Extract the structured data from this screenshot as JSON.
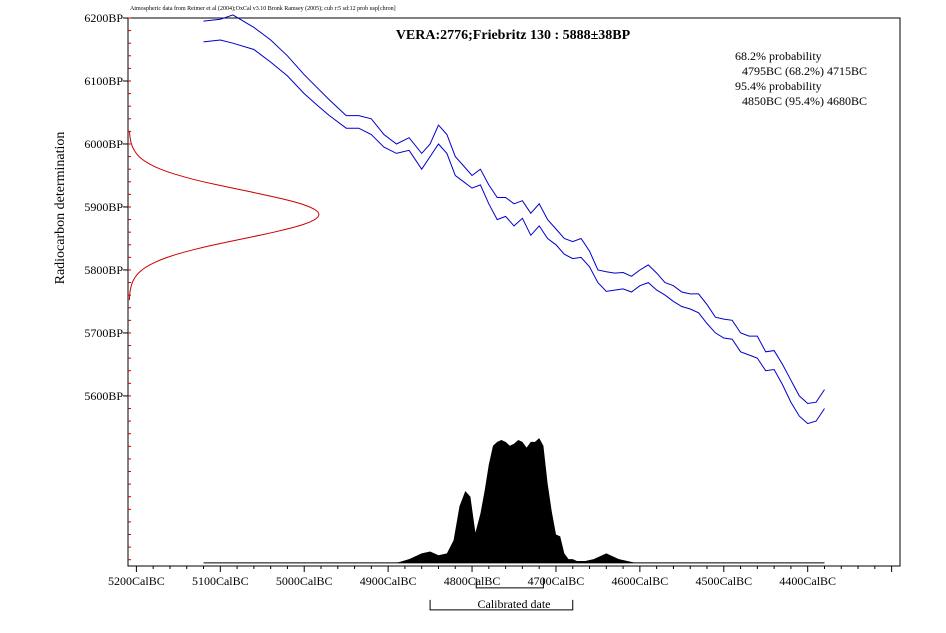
{
  "chart_data": {
    "type": "line",
    "header_note": "Atmospheric data from Reimer et al (2004);OxCal v3.10 Bronk Ramsey (2005); cub r:5 sd:12 prob usp[chron]",
    "title": "VERA:2776;Friebritz 130 : 5888±38BP",
    "xlabel": "Calibrated date",
    "ylabel": "Radiocarbon determination",
    "xlim": [
      5210,
      4290
    ],
    "ylim": [
      5330,
      6200
    ],
    "x_ticks": [
      5200,
      5100,
      5000,
      4900,
      4800,
      4700,
      4600,
      4500,
      4400
    ],
    "x_tick_labels": [
      "5200CalBC",
      "5100CalBC",
      "5000CalBC",
      "4900CalBC",
      "4800CalBC",
      "4700CalBC",
      "4600CalBC",
      "4500CalBC",
      "4400CalBC"
    ],
    "y_ticks": [
      5600,
      5700,
      5800,
      5900,
      6000,
      6100,
      6200
    ],
    "y_tick_labels": [
      "5600BP",
      "5700BP",
      "5800BP",
      "5900BP",
      "6000BP",
      "6100BP",
      "6200BP"
    ],
    "probability_text": [
      "68.2% probability",
      "4795BC (68.2%) 4715BC",
      "95.4% probability",
      "4850BC (95.4%) 4680BC"
    ],
    "ranges": [
      {
        "level": "68.2%",
        "from": 4795,
        "to": 4715
      },
      {
        "level": "95.4%",
        "from": 4850,
        "to": 4680
      }
    ],
    "radiocarbon": {
      "mean": 5888,
      "sd": 38
    },
    "calibration_curve_color": "#0000cc",
    "radiocarbon_curve_color": "#cc0000",
    "probability_fill_color": "#000000",
    "calibration_curve": {
      "x": [
        5120,
        5100,
        5085,
        5060,
        5040,
        5020,
        5000,
        4985,
        4970,
        4950,
        4935,
        4920,
        4905,
        4890,
        4875,
        4860,
        4850,
        4840,
        4830,
        4820,
        4810,
        4800,
        4790,
        4780,
        4770,
        4760,
        4750,
        4740,
        4730,
        4720,
        4710,
        4700,
        4690,
        4680,
        4670,
        4660,
        4650,
        4640,
        4630,
        4620,
        4610,
        4600,
        4590,
        4580,
        4570,
        4560,
        4550,
        4540,
        4530,
        4520,
        4510,
        4500,
        4490,
        4480,
        4470,
        4460,
        4450,
        4440,
        4430,
        4420,
        4410,
        4400,
        4390,
        4380
      ],
      "upper": [
        6195,
        6198,
        6205,
        6185,
        6165,
        6140,
        6110,
        6090,
        6070,
        6045,
        6045,
        6040,
        6015,
        6000,
        6010,
        5985,
        6000,
        6030,
        6015,
        5980,
        5965,
        5950,
        5960,
        5935,
        5915,
        5915,
        5905,
        5910,
        5890,
        5905,
        5880,
        5865,
        5850,
        5845,
        5850,
        5830,
        5800,
        5797,
        5795,
        5796,
        5790,
        5800,
        5808,
        5795,
        5780,
        5775,
        5765,
        5762,
        5762,
        5745,
        5725,
        5722,
        5720,
        5700,
        5695,
        5695,
        5670,
        5672,
        5650,
        5625,
        5600,
        5588,
        5590,
        5610
      ],
      "lower": [
        6162,
        6165,
        6160,
        6150,
        6130,
        6108,
        6080,
        6062,
        6045,
        6025,
        6025,
        6015,
        5995,
        5985,
        5990,
        5960,
        5980,
        6000,
        5985,
        5950,
        5940,
        5930,
        5935,
        5905,
        5880,
        5885,
        5870,
        5882,
        5855,
        5870,
        5850,
        5840,
        5825,
        5818,
        5820,
        5805,
        5780,
        5766,
        5768,
        5770,
        5765,
        5775,
        5780,
        5768,
        5760,
        5750,
        5742,
        5738,
        5732,
        5715,
        5700,
        5692,
        5690,
        5670,
        5665,
        5660,
        5640,
        5642,
        5618,
        5590,
        5568,
        5556,
        5560,
        5580
      ]
    },
    "probability_distribution": {
      "baseline_bp": 5335,
      "scale_bp": 300,
      "x": [
        4890,
        4875,
        4860,
        4850,
        4840,
        4830,
        4822,
        4815,
        4808,
        4802,
        4796,
        4790,
        4785,
        4780,
        4775,
        4770,
        4765,
        4760,
        4755,
        4750,
        4745,
        4740,
        4735,
        4730,
        4725,
        4720,
        4715,
        4710,
        4705,
        4700,
        4695,
        4690,
        4685,
        4680,
        4675,
        4665,
        4655,
        4640,
        4625,
        4615,
        4605,
        4595
      ],
      "y": [
        0.0,
        0.02,
        0.05,
        0.06,
        0.04,
        0.05,
        0.12,
        0.3,
        0.38,
        0.35,
        0.16,
        0.26,
        0.38,
        0.52,
        0.62,
        0.64,
        0.65,
        0.64,
        0.62,
        0.63,
        0.65,
        0.64,
        0.61,
        0.64,
        0.64,
        0.66,
        0.62,
        0.42,
        0.27,
        0.15,
        0.14,
        0.05,
        0.02,
        0.02,
        0.01,
        0.01,
        0.02,
        0.05,
        0.02,
        0.01,
        0.0,
        0.0
      ]
    }
  }
}
